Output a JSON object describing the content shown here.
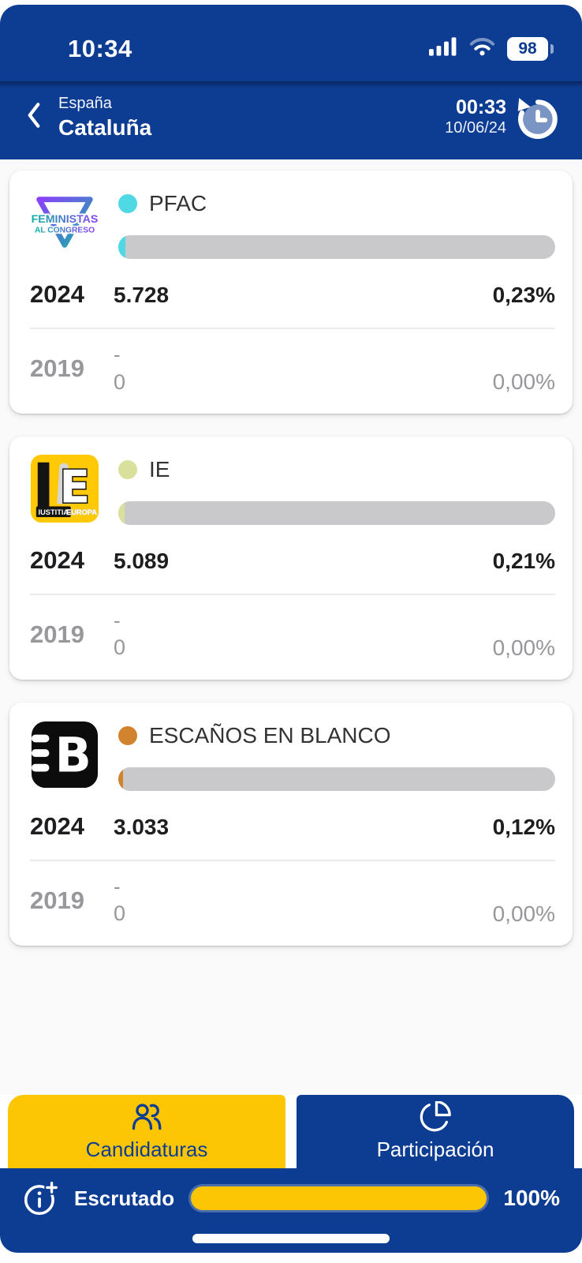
{
  "status_bar": {
    "time": "10:34",
    "battery_level": "98"
  },
  "header": {
    "breadcrumb": "España",
    "title": "Cataluña",
    "countdown": "00:33",
    "date": "10/06/24"
  },
  "labels": {
    "year_current": "2024",
    "year_previous": "2019"
  },
  "parties": [
    {
      "name": "PFAC",
      "dot_color": "#4ed9e4",
      "bar_fill_pct": 1.6,
      "logo": {
        "line1": "FEMINISTAS",
        "line2": "AL CONGRESO"
      },
      "current": {
        "votes": "5.728",
        "pct": "0,23%"
      },
      "previous": {
        "seats": "-",
        "votes": "0",
        "pct": "0,00%"
      }
    },
    {
      "name": "IE",
      "dot_color": "#d9e09c",
      "bar_fill_pct": 1.4,
      "logo": {
        "letter": "E",
        "line1": "IUSTITIA",
        "line2": "EUROPA"
      },
      "current": {
        "votes": "5.089",
        "pct": "0,21%"
      },
      "previous": {
        "seats": "-",
        "votes": "0",
        "pct": "0,00%"
      }
    },
    {
      "name": "ESCAÑOS EN BLANCO",
      "dot_color": "#d2832e",
      "bar_fill_pct": 1.0,
      "logo": {
        "letter": "B"
      },
      "current": {
        "votes": "3.033",
        "pct": "0,12%"
      },
      "previous": {
        "seats": "-",
        "votes": "0",
        "pct": "0,00%"
      }
    }
  ],
  "tabs": [
    {
      "label": "Candidaturas",
      "active": true
    },
    {
      "label": "Participación",
      "active": false
    }
  ],
  "footer": {
    "label": "Escrutado",
    "percent_text": "100%",
    "progress_pct": 100
  },
  "colors": {
    "primary_blue": "#0d3d92",
    "accent_yellow": "#fdc605"
  }
}
